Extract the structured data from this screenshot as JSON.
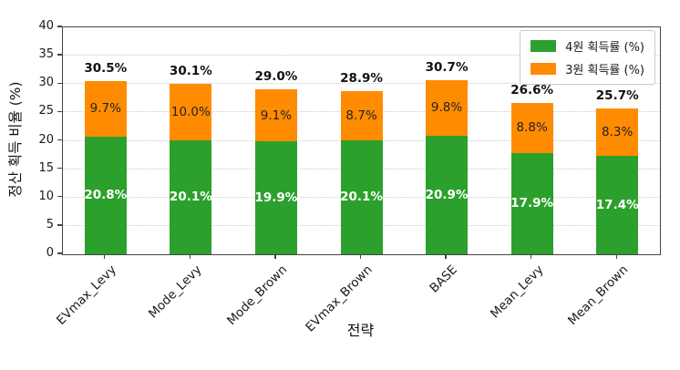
{
  "chart_data": {
    "type": "bar",
    "stacked": true,
    "title": "",
    "xlabel": "전략",
    "ylabel": "정산 획득 비율 (%)",
    "categories": [
      "EVmax_Levy",
      "Mode_Levy",
      "Mode_Brown",
      "EVmax_Brown",
      "BASE",
      "Mean_Levy",
      "Mean_Brown"
    ],
    "series": [
      {
        "name": "4원 획득률 (%)",
        "color": "#2ca02c",
        "label_color": "#ffffff",
        "label_weight": "bold",
        "values": [
          20.8,
          20.1,
          19.9,
          20.1,
          20.9,
          17.9,
          17.4
        ]
      },
      {
        "name": "3원 획득률 (%)",
        "color": "#ff8c00",
        "label_color": "#222222",
        "label_weight": "normal",
        "values": [
          9.7,
          10.0,
          9.1,
          8.7,
          9.8,
          8.8,
          8.3
        ]
      }
    ],
    "totals": [
      30.5,
      30.1,
      29.0,
      28.9,
      30.7,
      26.6,
      25.7
    ],
    "ylim": [
      0,
      40
    ],
    "yticks": [
      0,
      5,
      10,
      15,
      20,
      25,
      30,
      35,
      40
    ],
    "grid": "horizontal-dotted",
    "gridline_color": "#cccccc",
    "legend_position": "upper-right",
    "value_suffix": "%"
  }
}
